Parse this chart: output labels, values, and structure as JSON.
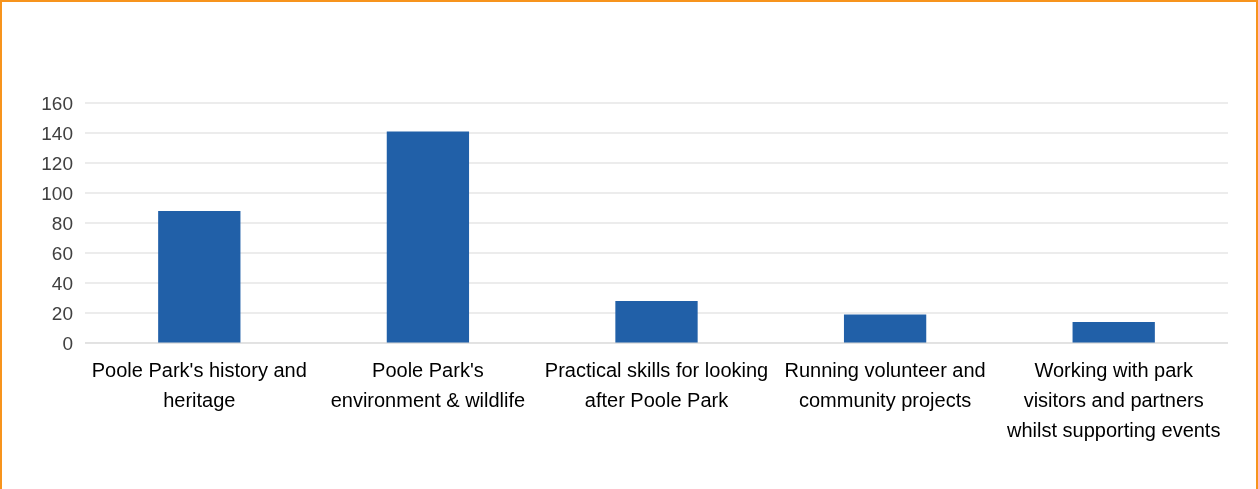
{
  "chart_data": {
    "type": "bar",
    "categories": [
      "Poole Park's history and heritage",
      "Poole Park's environment & wildlife",
      "Practical skills for looking after Poole Park",
      "Running volunteer and community projects",
      "Working with park visitors and partners whilst supporting events"
    ],
    "values": [
      88,
      141,
      28,
      19,
      14
    ],
    "color": "#2160a8",
    "ylim": [
      0,
      160
    ],
    "yticks": [
      0,
      20,
      40,
      60,
      80,
      100,
      120,
      140,
      160
    ],
    "grid": "y"
  }
}
